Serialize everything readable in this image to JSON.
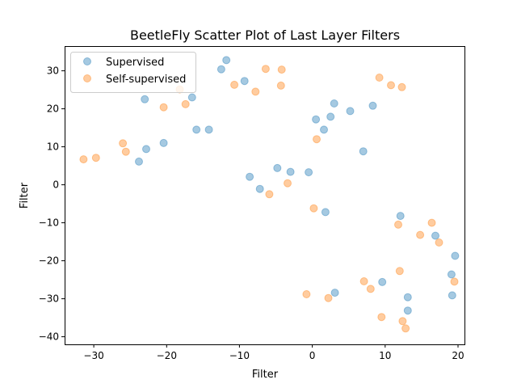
{
  "chart_data": {
    "type": "scatter",
    "title": "BeetleFly Scatter Plot of Last Layer Filters",
    "xlabel": "Filter",
    "ylabel": "Filter",
    "xlim": [
      -34,
      21
    ],
    "ylim": [
      -42,
      36.5
    ],
    "xticks": [
      -30,
      -20,
      -10,
      0,
      10,
      20
    ],
    "yticks": [
      -40,
      -30,
      -20,
      -10,
      0,
      10,
      20,
      30
    ],
    "xtick_labels": [
      "−30",
      "−20",
      "−10",
      "0",
      "10",
      "20"
    ],
    "ytick_labels": [
      "−40",
      "−30",
      "−20",
      "−10",
      "0",
      "10",
      "20",
      "30"
    ],
    "grid": false,
    "legend_position": "top-left",
    "series": [
      {
        "name": "Supervised",
        "color": "#1f77b4",
        "points": [
          [
            -11.8,
            32.8
          ],
          [
            -12.5,
            30.4
          ],
          [
            -9.3,
            27.3
          ],
          [
            -23.0,
            22.5
          ],
          [
            -16.5,
            23.0
          ],
          [
            -15.9,
            14.5
          ],
          [
            -14.2,
            14.5
          ],
          [
            -20.4,
            11.0
          ],
          [
            -22.8,
            9.4
          ],
          [
            -23.8,
            6.1
          ],
          [
            0.5,
            17.2
          ],
          [
            1.6,
            14.5
          ],
          [
            2.5,
            17.9
          ],
          [
            3.0,
            21.4
          ],
          [
            5.2,
            19.4
          ],
          [
            8.3,
            20.8
          ],
          [
            7.0,
            8.8
          ],
          [
            -8.6,
            2.1
          ],
          [
            -7.2,
            -1.1
          ],
          [
            -4.8,
            4.4
          ],
          [
            -3.0,
            3.4
          ],
          [
            -0.5,
            3.3
          ],
          [
            1.8,
            -7.2
          ],
          [
            12.1,
            -8.2
          ],
          [
            19.6,
            -18.7
          ],
          [
            19.1,
            -23.6
          ],
          [
            19.2,
            -29.1
          ],
          [
            9.6,
            -25.6
          ],
          [
            3.1,
            -28.4
          ],
          [
            13.1,
            -29.6
          ],
          [
            13.1,
            -33.1
          ],
          [
            16.9,
            -13.4
          ]
        ]
      },
      {
        "name": "Self-supervised",
        "color": "#ff7f0e",
        "points": [
          [
            -6.4,
            30.5
          ],
          [
            -4.2,
            30.3
          ],
          [
            -10.7,
            26.3
          ],
          [
            -7.8,
            24.5
          ],
          [
            -4.3,
            26.1
          ],
          [
            -18.2,
            25.1
          ],
          [
            -20.4,
            20.4
          ],
          [
            -17.4,
            21.2
          ],
          [
            -26.0,
            10.9
          ],
          [
            -25.6,
            8.7
          ],
          [
            -29.7,
            7.1
          ],
          [
            -31.4,
            6.7
          ],
          [
            9.2,
            28.2
          ],
          [
            10.8,
            26.2
          ],
          [
            12.3,
            25.7
          ],
          [
            0.6,
            12.0
          ],
          [
            -3.4,
            0.4
          ],
          [
            -5.9,
            -2.5
          ],
          [
            0.2,
            -6.2
          ],
          [
            11.8,
            -10.5
          ],
          [
            16.4,
            -10.0
          ],
          [
            14.8,
            -13.2
          ],
          [
            17.4,
            -15.2
          ],
          [
            12.0,
            -22.7
          ],
          [
            19.5,
            -25.5
          ],
          [
            7.1,
            -25.4
          ],
          [
            8.0,
            -27.4
          ],
          [
            -0.8,
            -28.8
          ],
          [
            2.2,
            -29.8
          ],
          [
            9.5,
            -34.8
          ],
          [
            12.4,
            -35.9
          ],
          [
            12.8,
            -37.8
          ]
        ]
      }
    ]
  }
}
